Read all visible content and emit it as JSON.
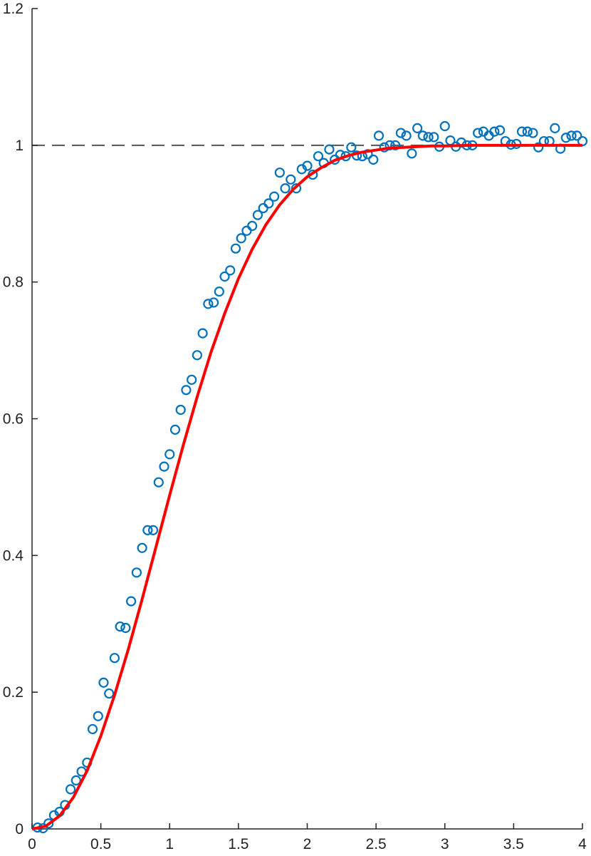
{
  "chart_data": {
    "type": "scatter",
    "xlim": [
      0,
      4
    ],
    "ylim": [
      0,
      1.2
    ],
    "xticks": [
      0,
      0.5,
      1,
      1.5,
      2,
      2.5,
      3,
      3.5,
      4
    ],
    "yticks": [
      0,
      0.2,
      0.4,
      0.6,
      0.8,
      1,
      1.2
    ],
    "grid": false,
    "reference_line": {
      "value": 1,
      "color": "#555555",
      "dashed": true
    },
    "series": [
      {
        "type": "scatter",
        "color": "#0072bd",
        "x": [
          0.04,
          0.08,
          0.12,
          0.16,
          0.2,
          0.24,
          0.28,
          0.32,
          0.36,
          0.4,
          0.44,
          0.48,
          0.52,
          0.56,
          0.6,
          0.64,
          0.68,
          0.72,
          0.76,
          0.8,
          0.84,
          0.88,
          0.92,
          0.96,
          1.0,
          1.04,
          1.08,
          1.12,
          1.16,
          1.2,
          1.24,
          1.28,
          1.32,
          1.36,
          1.4,
          1.44,
          1.48,
          1.52,
          1.56,
          1.6,
          1.64,
          1.68,
          1.72,
          1.76,
          1.8,
          1.84,
          1.88,
          1.92,
          1.96,
          2.0,
          2.04,
          2.08,
          2.12,
          2.16,
          2.2,
          2.24,
          2.28,
          2.32,
          2.36,
          2.4,
          2.44,
          2.48,
          2.52,
          2.56,
          2.6,
          2.64,
          2.68,
          2.72,
          2.76,
          2.8,
          2.84,
          2.88,
          2.92,
          2.96,
          3.0,
          3.04,
          3.08,
          3.12,
          3.16,
          3.2,
          3.24,
          3.28,
          3.32,
          3.36,
          3.4,
          3.44,
          3.48,
          3.52,
          3.56,
          3.6,
          3.64,
          3.68,
          3.72,
          3.76,
          3.8,
          3.84,
          3.88,
          3.92,
          3.96,
          4.0
        ],
        "values": [
          0.002,
          0.001,
          0.008,
          0.02,
          0.025,
          0.035,
          0.058,
          0.071,
          0.084,
          0.097,
          0.146,
          0.165,
          0.214,
          0.198,
          0.25,
          0.296,
          0.294,
          0.333,
          0.375,
          0.411,
          0.437,
          0.437,
          0.507,
          0.53,
          0.548,
          0.584,
          0.613,
          0.642,
          0.657,
          0.693,
          0.725,
          0.768,
          0.77,
          0.786,
          0.808,
          0.817,
          0.849,
          0.864,
          0.875,
          0.882,
          0.898,
          0.908,
          0.915,
          0.925,
          0.96,
          0.937,
          0.95,
          0.937,
          0.965,
          0.97,
          0.957,
          0.984,
          0.974,
          0.994,
          0.979,
          0.986,
          0.984,
          0.997,
          0.985,
          0.984,
          0.987,
          0.979,
          1.014,
          0.997,
          1.0,
          1.0,
          1.018,
          1.014,
          0.988,
          1.025,
          1.014,
          1.012,
          1.012,
          0.998,
          1.028,
          1.007,
          0.998,
          1.004,
          1.0,
          1.0,
          1.018,
          1.02,
          1.014,
          1.02,
          1.022,
          1.006,
          1.001,
          1.002,
          1.02,
          1.02,
          1.018,
          0.997,
          1.006,
          1.006,
          1.025,
          0.995,
          1.011,
          1.014,
          1.014,
          1.006
        ]
      },
      {
        "type": "line",
        "color": "#ff0000",
        "x": [
          0,
          0.1,
          0.2,
          0.3,
          0.4,
          0.5,
          0.6,
          0.7,
          0.8,
          0.9,
          1.0,
          1.1,
          1.2,
          1.3,
          1.4,
          1.5,
          1.6,
          1.7,
          1.8,
          1.9,
          2.0,
          2.1,
          2.2,
          2.3,
          2.4,
          2.5,
          2.6,
          2.7,
          2.8,
          2.9,
          3.0,
          3.2,
          3.4,
          3.6,
          3.8,
          4.0
        ],
        "values": [
          0,
          0.004,
          0.019,
          0.046,
          0.085,
          0.136,
          0.196,
          0.263,
          0.336,
          0.412,
          0.488,
          0.562,
          0.632,
          0.697,
          0.754,
          0.805,
          0.848,
          0.884,
          0.913,
          0.936,
          0.954,
          0.967,
          0.978,
          0.985,
          0.99,
          0.993,
          0.996,
          0.997,
          0.998,
          0.999,
          0.999,
          1.0,
          1.0,
          1.0,
          1.0,
          1.0
        ]
      }
    ]
  }
}
